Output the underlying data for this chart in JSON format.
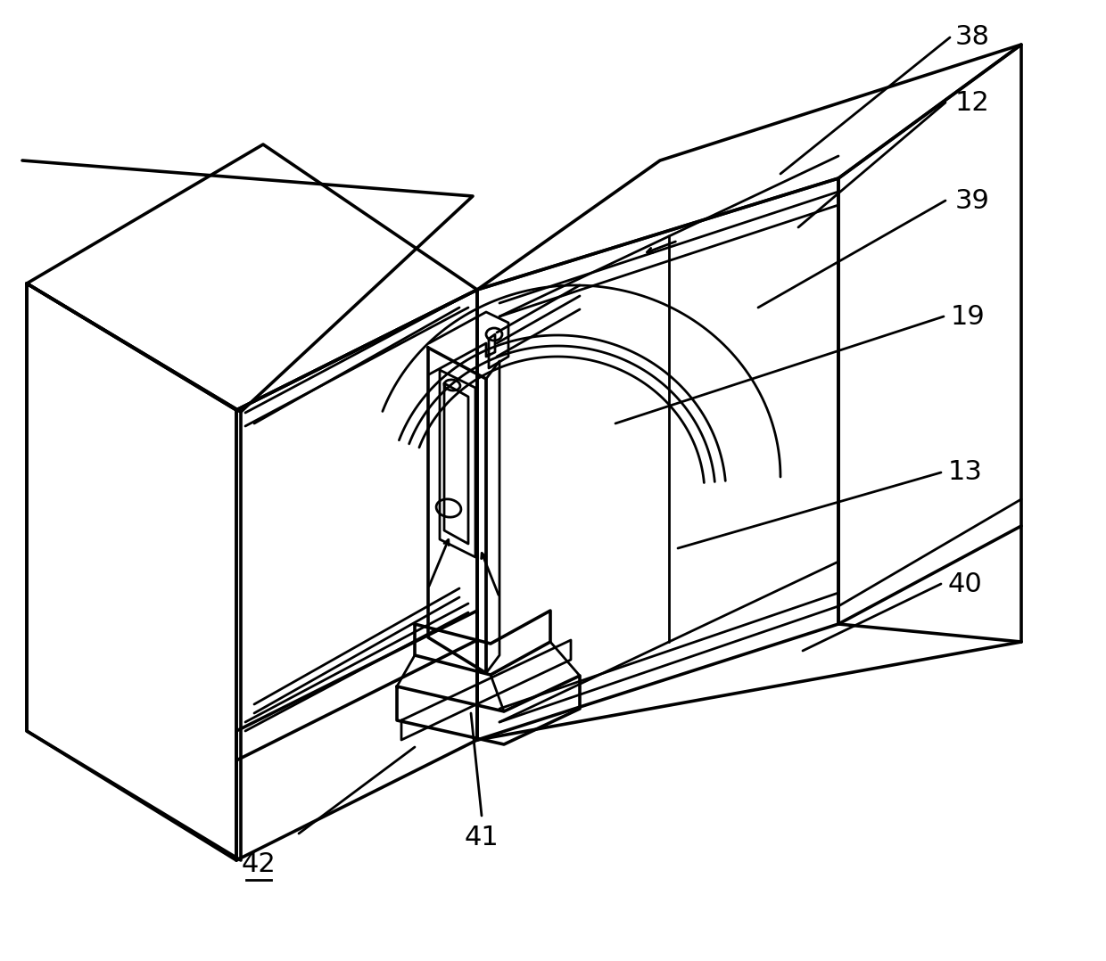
{
  "bg_color": "#ffffff",
  "line_color": "#000000",
  "lw": 2.0,
  "fig_width": 12.4,
  "fig_height": 10.78,
  "label_fontsize": 22
}
